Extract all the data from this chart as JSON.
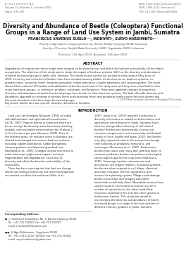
{
  "journal_header_left": "B I O D I V E R S I T A S\nVolume 10, Number 4, October 2009\nPages: 195-200",
  "journal_header_right": "ISSN: 1412-033X (printed edition)\nISSN: 2085-4722 (electronic)\nDOI: 10.13057/biodiv/d100408",
  "title_line1": "Diversity and Abundance of Beetle (Coleoptera) Functional",
  "title_line2": "Groups in a Range of Land Use System in Jambi, Sumatra",
  "authors": "FRANCISCUS XAVERIUS SUSILO¹⁻¹, INDRIYATI¹, SURYO HARDIMINTO²⁻⁻",
  "affil1": "¹Faculty of Agriculture, Lampung University (Unila), Bandar Lampung 35145, Indonesia",
  "affil2": "²Faculty of Forestry, Gadjah Mada University (UGM), Yogyakarta 55291, Indonesia",
  "received": "Received: 11th April 2009; Accepted: 10th June 2009.",
  "abstract_title": "ABSTRACT",
  "abstract_lines": [
    "Degradation of tropical rain forest might exert impacts on biodiversity loss and affect the function and stability of the related",
    "ecosystems. The objective of this study was to study the impact of land use systems (LUS) on the diversity and abundance",
    "of beetle functional groups in Jambi area, Sumatra. This research was carried out during the rainy season (May-June) of",
    "2004. Inventory and collection of beetles have been conducted using winkler method across six land use systems, i.e.",
    "primary forest, secondary forest, Imperata grassland, rubber plantation, oilpalm plantation, and cassava garden. The result",
    "showed that a total of 47 families and subfamilies of beetles was found in the study area, and they were classified into four",
    "major functional groups, i.e. herbivore, predator, scavenger, and fungivore. There were apparent changes in proportion,",
    "diversity, and abundance of beetle functional groups from forests to other land use systems. The bulk of beetle diversity and",
    "abundance appeared to converge in primary forest and secondary forest and predatory beetles were the most diverse and",
    "the most abundant of the four major functional groups."
  ],
  "copyright": "© 2010 Biodiversitas, Journal of Biological Diversity",
  "keywords": "Key words: beetle, land use system, diversity, abundance, Sumatra.",
  "intro_title": "INTRODUCTION",
  "intro_left_lines": [
    "    Land uses are changing (Vitousek, 1994) as linked",
    "with deforestation and agricultural intensification",
    "(GCTE, 1997). Tropical forests in Indonesia which are",
    "known as high biodiversity areas have been declining",
    "steadily, with estimated deforestation rate of about 2",
    "million hectares per year (Suparna, 2005). Parts of",
    "the forested areas, for instance those in Sumatra, are",
    "cleared and changed into various land use systems,",
    "including oilpalm plantations, rubber plantations,",
    "cassava gardens, and Imperata grassland (van",
    "Noordwijk et al., 1995). Changes tropical rain forest to",
    "other land-users might exert impacts on forest",
    "fragmentation and degradation, cause loss of",
    "diversity and affect the function and stability of the",
    "ecosystems.",
    "    There has been a perception that land use change",
    "affects soil biological diversity but more investigations",
    "are needed to collect the evidence (Giller et al.,"
  ],
  "intro_right_lines": [
    "1997). Jones et al. (2003) reported a reduction in",
    "diversity of termites as related to deforestation and",
    "agricultural intensification in Jambi, Sumatra. Does",
    "land use change affect diversity of soil-related",
    "beetles? Beetles are taxonomically diverse and",
    "common components of soil community which dwell",
    "mainly in litter (Lavelle and Spain, 2001). Soil beetles",
    "may play important roles in the ecosystem through",
    "their activities as predators, herbivores, and",
    "scavengers (Broussard et al., 1997). Herbivorous",
    "beetles may cause crop injury and yield loss while, in",
    "contrast, predatory beetles can perform as biological",
    "control agents against the crop pests (Kalshoven,",
    "1981). Scavenger beetles communicate and",
    "decompose soil organic matters. In agroecosystems,",
    "beetles are often exposed to soil tillage, chemical",
    "pesticide, inorganic fertilizer application, and",
    "monoculture planting system. Tillage could damage",
    "beetle microniches and foraging sites while",
    "insecticide could toxify them. Meanwhile, monoculture",
    "system could in one hand limit food access for a",
    "number of species but in the other hand allow",
    "excessive exploitation for only few other species of",
    "herbivorous beetles. This study was aimed at",
    "inventorying the diversity and abundance of beetle",
    "functional groups in a range of land use systems of",
    "different intensity gradient in Jambi, Sumatra."
  ],
  "corr_label": "Corresponding address:",
  "corr1_lines": [
    "■  Jl. Soemantri Brojonegoro No. 1, Bandar Lampung 35145",
    "    Tel.: +62-721-702841, Fax +62-721-702767,",
    "    email: fxsusilo2000@yahoo.com"
  ],
  "corr2_lines": [
    "■■  Jl. Agro Bulaksumur, Yogyakarta 55281",
    "    Tel.: +62-274-512102, 901420, Fax +62-274-550541",
    "    email: suryohardiminto@yahoo.com"
  ],
  "bg_color": "#ffffff"
}
